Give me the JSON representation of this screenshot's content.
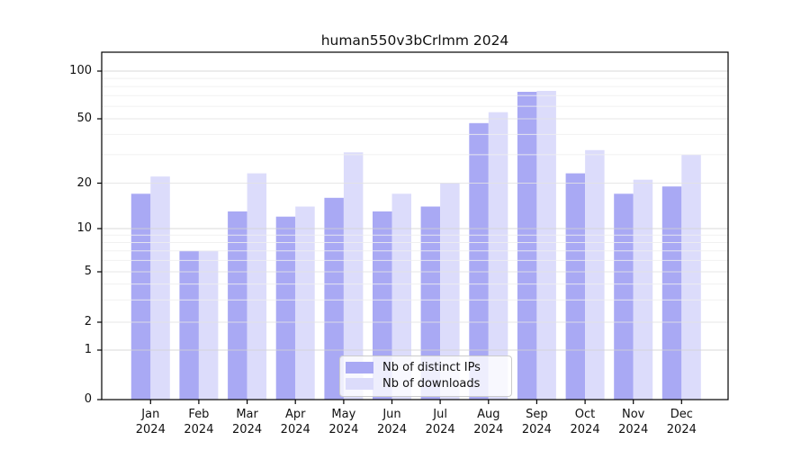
{
  "title": "human550v3bCrlmm 2024",
  "chart_data": {
    "type": "bar",
    "title": "human550v3bCrlmm 2024",
    "xlabel": "",
    "ylabel": "",
    "year_label": "2024",
    "categories": [
      "Jan",
      "Feb",
      "Mar",
      "Apr",
      "May",
      "Jun",
      "Jul",
      "Aug",
      "Sep",
      "Oct",
      "Nov",
      "Dec"
    ],
    "series": [
      {
        "name": "Nb of distinct IPs",
        "color": "#a9a9f4",
        "values": [
          17,
          7,
          13,
          12,
          16,
          13,
          14,
          47,
          74,
          23,
          17,
          19
        ]
      },
      {
        "name": "Nb of downloads",
        "color": "#dcdcfb",
        "values": [
          22,
          7,
          23,
          14,
          31,
          17,
          20,
          55,
          75,
          32,
          21,
          30
        ]
      }
    ],
    "yscale": "log above 1, linear between 0 and 1",
    "yticks": [
      0,
      1,
      2,
      5,
      10,
      20,
      50,
      100
    ],
    "ylim": [
      0,
      132
    ],
    "grid": "on, horizontal, drawn above bars",
    "legend_position": "bottom-center",
    "colors": {
      "background": "#ffffff",
      "spine": "#000000",
      "grid_major": "#d2d2d2",
      "grid_labeled": "#e3e3e3",
      "grid_minor": "#efefef",
      "text": "#111111",
      "legend_border": "#cccccc"
    },
    "grid_minor_values": [
      3,
      4,
      6,
      7,
      8,
      9,
      30,
      40,
      60,
      70,
      80,
      90
    ],
    "grid_major_values": [
      1,
      10,
      100
    ]
  }
}
